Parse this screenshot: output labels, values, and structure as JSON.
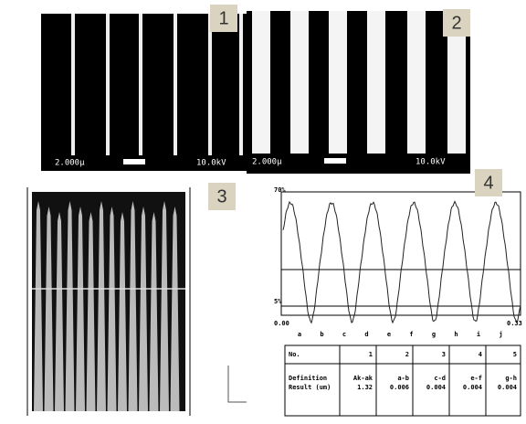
{
  "panels": [
    {
      "label": "1",
      "scale_text": "2.000μ",
      "voltage_text": "10.0kV"
    },
    {
      "label": "2",
      "scale_text": "2.000μ",
      "voltage_text": "10.0kV"
    },
    {
      "label": "3"
    },
    {
      "label": "4",
      "x_start": "0.00",
      "x_end": "0.33",
      "y_top": "70%",
      "y_bottom": "5%",
      "points": [
        "a",
        "b",
        "c",
        "d",
        "e",
        "f",
        "g",
        "h",
        "i",
        "j"
      ]
    }
  ],
  "table": {
    "header": [
      "No.",
      "1",
      "2",
      "3",
      "4",
      "5"
    ],
    "rows": [
      [
        "Definition",
        "Ak-ak",
        "a-b",
        "c-d",
        "e-f",
        "g-h"
      ],
      [
        "Result (um)",
        "1.32",
        "0.006",
        "0.004",
        "0.004",
        "0.004"
      ]
    ]
  }
}
